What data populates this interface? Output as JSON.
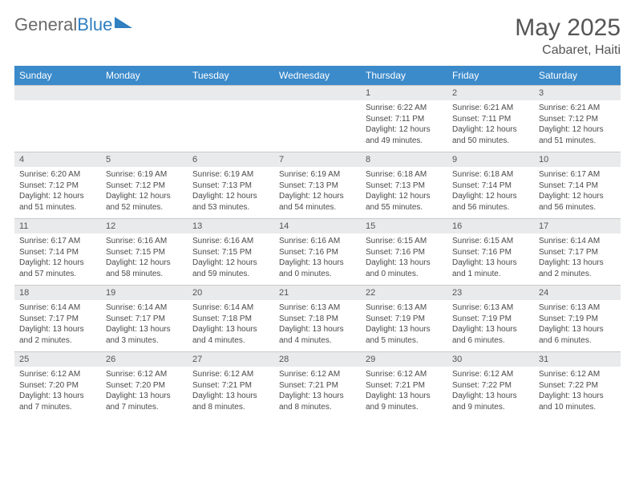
{
  "logo": {
    "word1": "General",
    "word2": "Blue"
  },
  "title": "May 2025",
  "location": "Cabaret, Haiti",
  "header_bg": "#3b8aca",
  "daynum_bg": "#e9eaeb",
  "day_names": [
    "Sunday",
    "Monday",
    "Tuesday",
    "Wednesday",
    "Thursday",
    "Friday",
    "Saturday"
  ],
  "weeks": [
    {
      "nums": [
        "",
        "",
        "",
        "",
        "1",
        "2",
        "3"
      ],
      "cells": [
        {},
        {},
        {},
        {},
        {
          "sr": "Sunrise: 6:22 AM",
          "ss": "Sunset: 7:11 PM",
          "dl": "Daylight: 12 hours and 49 minutes."
        },
        {
          "sr": "Sunrise: 6:21 AM",
          "ss": "Sunset: 7:11 PM",
          "dl": "Daylight: 12 hours and 50 minutes."
        },
        {
          "sr": "Sunrise: 6:21 AM",
          "ss": "Sunset: 7:12 PM",
          "dl": "Daylight: 12 hours and 51 minutes."
        }
      ]
    },
    {
      "nums": [
        "4",
        "5",
        "6",
        "7",
        "8",
        "9",
        "10"
      ],
      "cells": [
        {
          "sr": "Sunrise: 6:20 AM",
          "ss": "Sunset: 7:12 PM",
          "dl": "Daylight: 12 hours and 51 minutes."
        },
        {
          "sr": "Sunrise: 6:19 AM",
          "ss": "Sunset: 7:12 PM",
          "dl": "Daylight: 12 hours and 52 minutes."
        },
        {
          "sr": "Sunrise: 6:19 AM",
          "ss": "Sunset: 7:13 PM",
          "dl": "Daylight: 12 hours and 53 minutes."
        },
        {
          "sr": "Sunrise: 6:19 AM",
          "ss": "Sunset: 7:13 PM",
          "dl": "Daylight: 12 hours and 54 minutes."
        },
        {
          "sr": "Sunrise: 6:18 AM",
          "ss": "Sunset: 7:13 PM",
          "dl": "Daylight: 12 hours and 55 minutes."
        },
        {
          "sr": "Sunrise: 6:18 AM",
          "ss": "Sunset: 7:14 PM",
          "dl": "Daylight: 12 hours and 56 minutes."
        },
        {
          "sr": "Sunrise: 6:17 AM",
          "ss": "Sunset: 7:14 PM",
          "dl": "Daylight: 12 hours and 56 minutes."
        }
      ]
    },
    {
      "nums": [
        "11",
        "12",
        "13",
        "14",
        "15",
        "16",
        "17"
      ],
      "cells": [
        {
          "sr": "Sunrise: 6:17 AM",
          "ss": "Sunset: 7:14 PM",
          "dl": "Daylight: 12 hours and 57 minutes."
        },
        {
          "sr": "Sunrise: 6:16 AM",
          "ss": "Sunset: 7:15 PM",
          "dl": "Daylight: 12 hours and 58 minutes."
        },
        {
          "sr": "Sunrise: 6:16 AM",
          "ss": "Sunset: 7:15 PM",
          "dl": "Daylight: 12 hours and 59 minutes."
        },
        {
          "sr": "Sunrise: 6:16 AM",
          "ss": "Sunset: 7:16 PM",
          "dl": "Daylight: 13 hours and 0 minutes."
        },
        {
          "sr": "Sunrise: 6:15 AM",
          "ss": "Sunset: 7:16 PM",
          "dl": "Daylight: 13 hours and 0 minutes."
        },
        {
          "sr": "Sunrise: 6:15 AM",
          "ss": "Sunset: 7:16 PM",
          "dl": "Daylight: 13 hours and 1 minute."
        },
        {
          "sr": "Sunrise: 6:14 AM",
          "ss": "Sunset: 7:17 PM",
          "dl": "Daylight: 13 hours and 2 minutes."
        }
      ]
    },
    {
      "nums": [
        "18",
        "19",
        "20",
        "21",
        "22",
        "23",
        "24"
      ],
      "cells": [
        {
          "sr": "Sunrise: 6:14 AM",
          "ss": "Sunset: 7:17 PM",
          "dl": "Daylight: 13 hours and 2 minutes."
        },
        {
          "sr": "Sunrise: 6:14 AM",
          "ss": "Sunset: 7:17 PM",
          "dl": "Daylight: 13 hours and 3 minutes."
        },
        {
          "sr": "Sunrise: 6:14 AM",
          "ss": "Sunset: 7:18 PM",
          "dl": "Daylight: 13 hours and 4 minutes."
        },
        {
          "sr": "Sunrise: 6:13 AM",
          "ss": "Sunset: 7:18 PM",
          "dl": "Daylight: 13 hours and 4 minutes."
        },
        {
          "sr": "Sunrise: 6:13 AM",
          "ss": "Sunset: 7:19 PM",
          "dl": "Daylight: 13 hours and 5 minutes."
        },
        {
          "sr": "Sunrise: 6:13 AM",
          "ss": "Sunset: 7:19 PM",
          "dl": "Daylight: 13 hours and 6 minutes."
        },
        {
          "sr": "Sunrise: 6:13 AM",
          "ss": "Sunset: 7:19 PM",
          "dl": "Daylight: 13 hours and 6 minutes."
        }
      ]
    },
    {
      "nums": [
        "25",
        "26",
        "27",
        "28",
        "29",
        "30",
        "31"
      ],
      "cells": [
        {
          "sr": "Sunrise: 6:12 AM",
          "ss": "Sunset: 7:20 PM",
          "dl": "Daylight: 13 hours and 7 minutes."
        },
        {
          "sr": "Sunrise: 6:12 AM",
          "ss": "Sunset: 7:20 PM",
          "dl": "Daylight: 13 hours and 7 minutes."
        },
        {
          "sr": "Sunrise: 6:12 AM",
          "ss": "Sunset: 7:21 PM",
          "dl": "Daylight: 13 hours and 8 minutes."
        },
        {
          "sr": "Sunrise: 6:12 AM",
          "ss": "Sunset: 7:21 PM",
          "dl": "Daylight: 13 hours and 8 minutes."
        },
        {
          "sr": "Sunrise: 6:12 AM",
          "ss": "Sunset: 7:21 PM",
          "dl": "Daylight: 13 hours and 9 minutes."
        },
        {
          "sr": "Sunrise: 6:12 AM",
          "ss": "Sunset: 7:22 PM",
          "dl": "Daylight: 13 hours and 9 minutes."
        },
        {
          "sr": "Sunrise: 6:12 AM",
          "ss": "Sunset: 7:22 PM",
          "dl": "Daylight: 13 hours and 10 minutes."
        }
      ]
    }
  ]
}
